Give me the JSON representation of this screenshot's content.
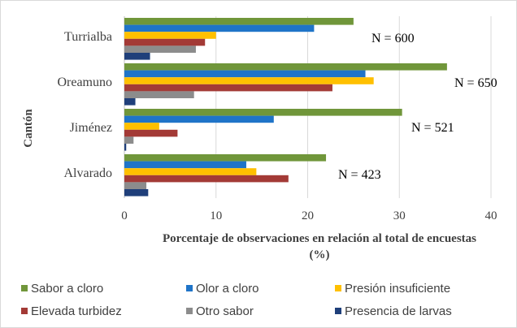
{
  "chart_data": {
    "type": "bar",
    "orientation": "horizontal",
    "categories": [
      "Turrialba",
      "Oreamuno",
      "Jiménez",
      "Alvarado"
    ],
    "series": [
      {
        "name": "Sabor a cloro",
        "color": "#70963a",
        "values": [
          25.0,
          35.2,
          30.3,
          22.0
        ]
      },
      {
        "name": "Olor a cloro",
        "color": "#1f74c8",
        "values": [
          20.7,
          26.3,
          16.3,
          13.3
        ]
      },
      {
        "name": "Presión insuficiente",
        "color": "#ffc000",
        "values": [
          10.0,
          27.2,
          3.8,
          14.4
        ]
      },
      {
        "name": "Elevada turbidez",
        "color": "#a33a36",
        "values": [
          8.8,
          22.7,
          5.8,
          17.9
        ]
      },
      {
        "name": "Otro sabor",
        "color": "#8c8c8c",
        "values": [
          7.8,
          7.6,
          1.0,
          2.4
        ]
      },
      {
        "name": "Presencia de larvas",
        "color": "#1f3f7a",
        "values": [
          2.8,
          1.2,
          0.2,
          2.6
        ]
      }
    ],
    "annotations": [
      "N = 600",
      "N = 650",
      "N = 521",
      "N = 423"
    ],
    "xlabel": "Porcentaje de observaciones en relación al total de encuestas (%)",
    "xlabel_lines": [
      "Porcentaje de observaciones en relación al total de encuestas",
      "(%)"
    ],
    "ylabel": "Cantón",
    "xlim": [
      0,
      40
    ],
    "xticks": [
      0,
      10,
      20,
      30,
      40
    ],
    "grid": "vertical",
    "legend_position": "bottom"
  }
}
